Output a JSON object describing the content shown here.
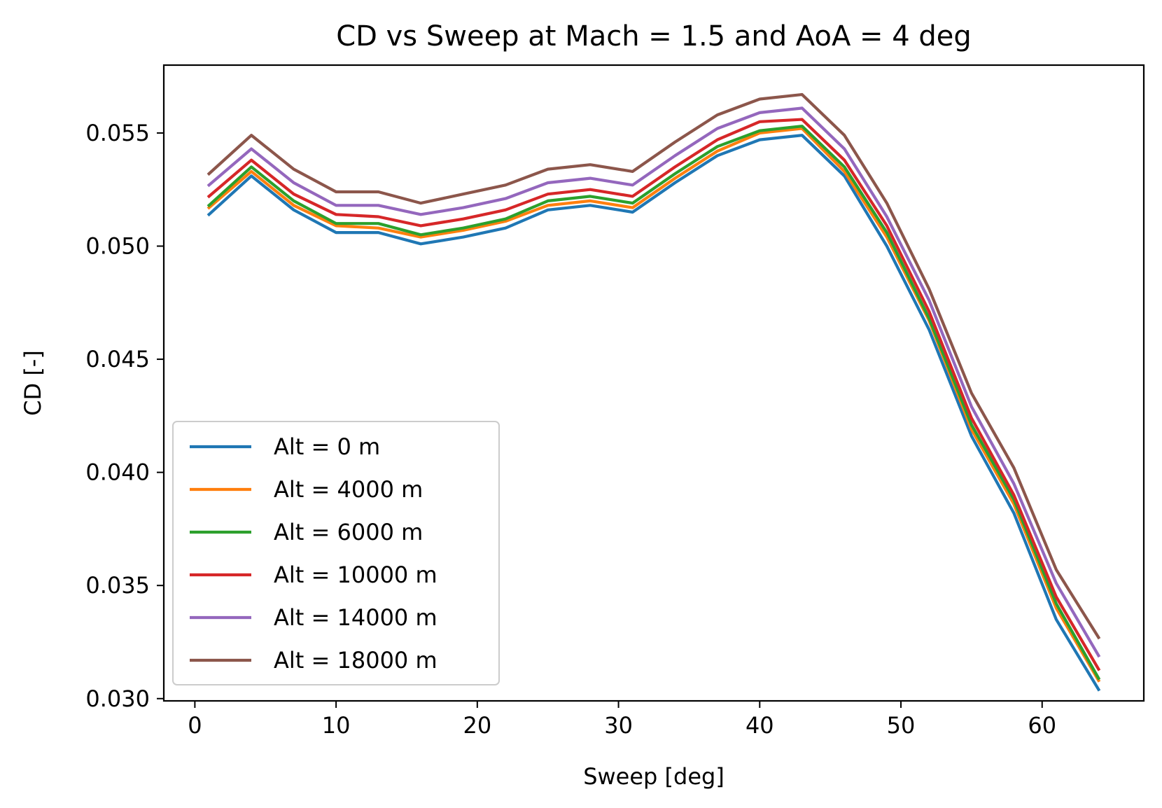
{
  "chart_data": {
    "type": "line",
    "title": "CD vs Sweep at Mach = 1.5 and AoA = 4 deg",
    "xlabel": "Sweep [deg]",
    "ylabel": "CD [-]",
    "xlim": [
      -2.2,
      67.2
    ],
    "ylim": [
      0.0299,
      0.058
    ],
    "xticks": [
      0,
      10,
      20,
      30,
      40,
      50,
      60
    ],
    "xtick_labels": [
      "0",
      "10",
      "20",
      "30",
      "40",
      "50",
      "60"
    ],
    "yticks": [
      0.03,
      0.035,
      0.04,
      0.045,
      0.05,
      0.055
    ],
    "ytick_labels": [
      "0.030",
      "0.035",
      "0.040",
      "0.045",
      "0.050",
      "0.055"
    ],
    "grid": false,
    "legend_position": "lower-left",
    "x": [
      1,
      4,
      7,
      10,
      13,
      16,
      19,
      22,
      25,
      28,
      31,
      34,
      37,
      40,
      43,
      46,
      49,
      52,
      55,
      58,
      61,
      64
    ],
    "series": [
      {
        "name": "Alt = 0 m",
        "color": "#1f77b4",
        "values": [
          0.0514,
          0.0531,
          0.0516,
          0.0506,
          0.0506,
          0.0501,
          0.0504,
          0.0508,
          0.0516,
          0.0518,
          0.0515,
          0.0528,
          0.054,
          0.0547,
          0.0549,
          0.0531,
          0.05,
          0.0463,
          0.0416,
          0.0382,
          0.0335,
          0.0304
        ]
      },
      {
        "name": "Alt = 4000 m",
        "color": "#ff7f0e",
        "values": [
          0.0517,
          0.0533,
          0.0518,
          0.0509,
          0.0508,
          0.0504,
          0.0507,
          0.0511,
          0.0518,
          0.052,
          0.0517,
          0.053,
          0.0542,
          0.055,
          0.0552,
          0.0533,
          0.0504,
          0.0467,
          0.0419,
          0.0386,
          0.034,
          0.0308
        ]
      },
      {
        "name": "Alt = 6000 m",
        "color": "#2ca02c",
        "values": [
          0.0518,
          0.0535,
          0.052,
          0.051,
          0.051,
          0.0505,
          0.0508,
          0.0512,
          0.052,
          0.0522,
          0.0519,
          0.0532,
          0.0544,
          0.0551,
          0.0553,
          0.0535,
          0.0506,
          0.0468,
          0.0421,
          0.0388,
          0.0342,
          0.0309
        ]
      },
      {
        "name": "Alt = 10000 m",
        "color": "#d62728",
        "values": [
          0.0522,
          0.0538,
          0.0523,
          0.0514,
          0.0513,
          0.0509,
          0.0512,
          0.0516,
          0.0523,
          0.0525,
          0.0522,
          0.0535,
          0.0547,
          0.0555,
          0.0556,
          0.0538,
          0.0509,
          0.0471,
          0.0424,
          0.039,
          0.0345,
          0.0313
        ]
      },
      {
        "name": "Alt = 14000 m",
        "color": "#9467bd",
        "values": [
          0.0527,
          0.0543,
          0.0528,
          0.0518,
          0.0518,
          0.0514,
          0.0517,
          0.0521,
          0.0528,
          0.053,
          0.0527,
          0.054,
          0.0552,
          0.0559,
          0.0561,
          0.0543,
          0.0513,
          0.0476,
          0.0429,
          0.0395,
          0.0351,
          0.0319
        ]
      },
      {
        "name": "Alt = 18000 m",
        "color": "#8c564b",
        "values": [
          0.0532,
          0.0549,
          0.0534,
          0.0524,
          0.0524,
          0.0519,
          0.0523,
          0.0527,
          0.0534,
          0.0536,
          0.0533,
          0.0546,
          0.0558,
          0.0565,
          0.0567,
          0.0549,
          0.0519,
          0.0481,
          0.0435,
          0.0402,
          0.0357,
          0.0327
        ]
      }
    ]
  }
}
